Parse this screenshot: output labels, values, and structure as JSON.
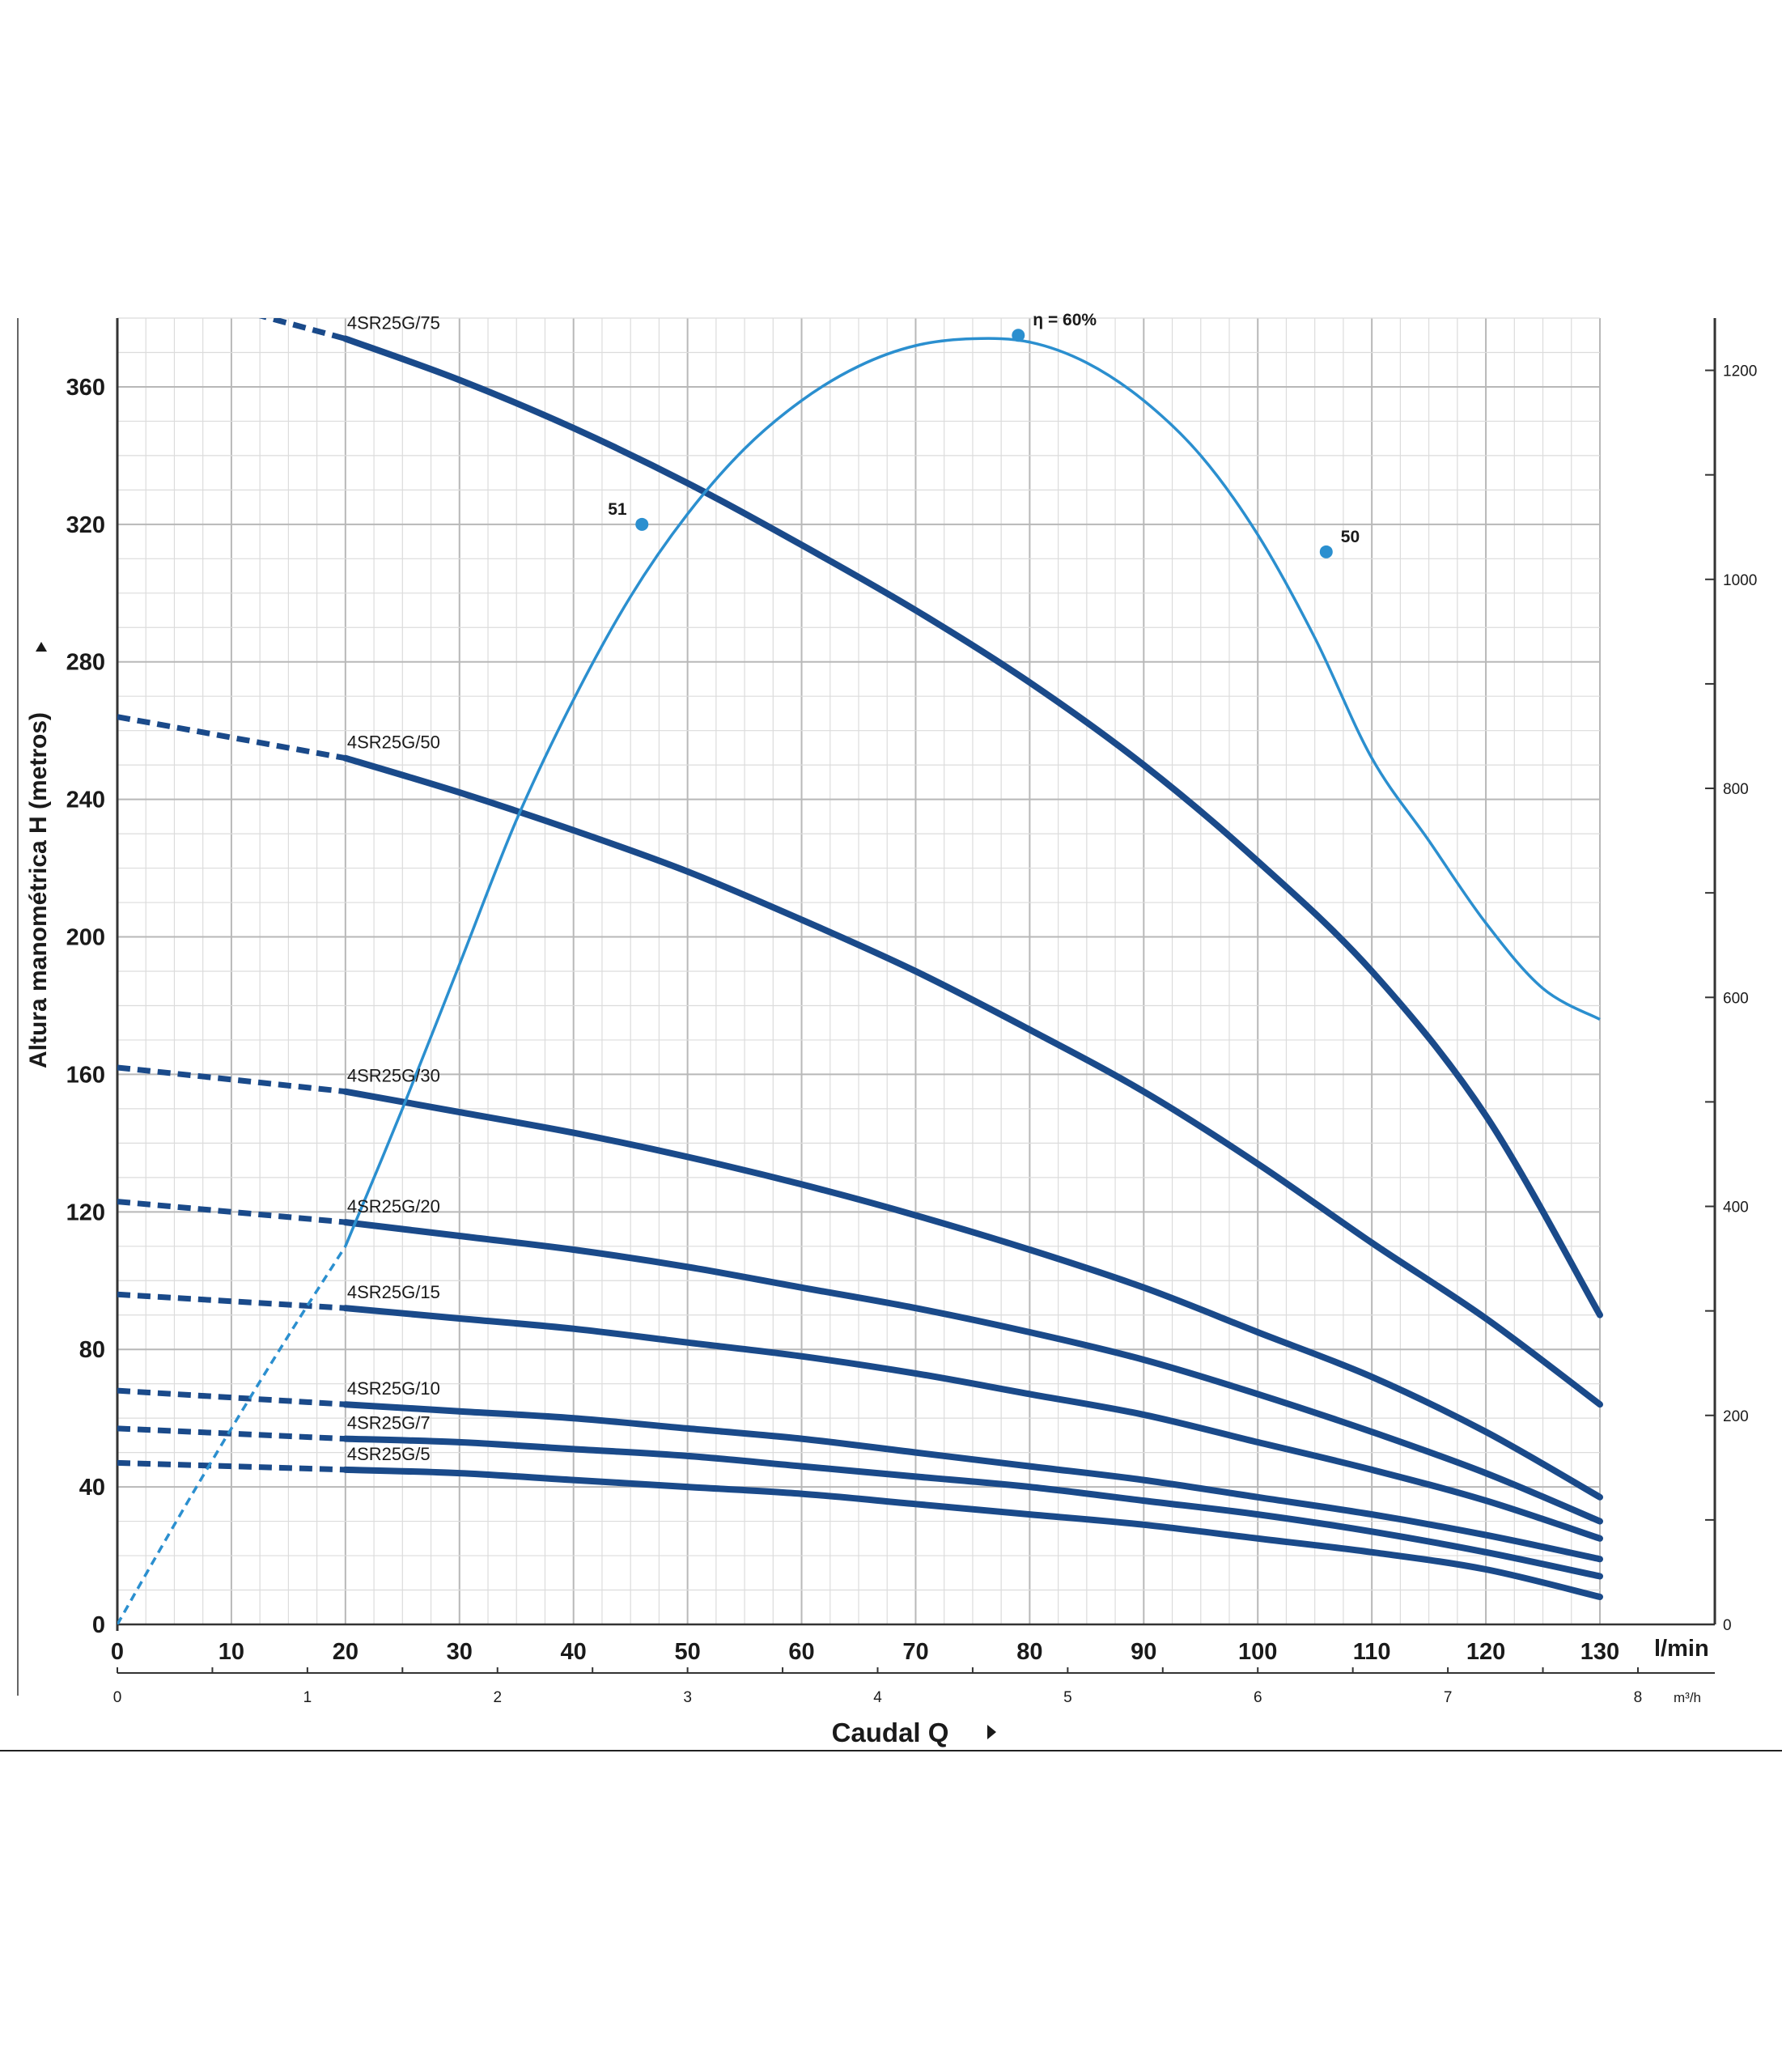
{
  "chart_data": {
    "type": "line",
    "xlabel": "Caudal Q",
    "ylabel": "Altura manométrica H (metros)",
    "x_unit": "l/min",
    "x_secondary_unit": "m³/h",
    "xlim": [
      0,
      130
    ],
    "ylim": [
      0,
      380
    ],
    "y_right_lim": [
      0,
      1250
    ],
    "x_ticks": [
      0,
      10,
      20,
      30,
      40,
      50,
      60,
      70,
      80,
      90,
      100,
      110,
      120,
      130
    ],
    "y_ticks": [
      0,
      40,
      80,
      120,
      160,
      200,
      240,
      280,
      320,
      360
    ],
    "x_secondary_ticks": [
      0,
      1,
      2,
      3,
      4,
      5,
      6,
      7,
      8
    ],
    "y_right_ticks": [
      0,
      200,
      400,
      600,
      800,
      1000,
      1200
    ],
    "grid": true,
    "curve_x": [
      20,
      30,
      40,
      50,
      60,
      70,
      80,
      90,
      100,
      110,
      120,
      130
    ],
    "series": [
      {
        "name": "4SR25G/75",
        "color": "#1a4a8a",
        "shutoff_head": 392,
        "values": [
          374,
          362,
          348,
          332,
          314,
          295,
          274,
          250,
          222,
          190,
          148,
          90
        ]
      },
      {
        "name": "4SR25G/50",
        "color": "#1a4a8a",
        "shutoff_head": 264,
        "values": [
          252,
          242,
          231,
          219,
          205,
          190,
          173,
          155,
          134,
          111,
          89,
          64
        ]
      },
      {
        "name": "4SR25G/30",
        "color": "#1a4a8a",
        "shutoff_head": 162,
        "values": [
          155,
          149,
          143,
          136,
          128,
          119,
          109,
          98,
          85,
          72,
          56,
          37
        ]
      },
      {
        "name": "4SR25G/20",
        "color": "#1a4a8a",
        "shutoff_head": 123,
        "values": [
          117,
          113,
          109,
          104,
          98,
          92,
          85,
          77,
          67,
          56,
          44,
          30
        ]
      },
      {
        "name": "4SR25G/15",
        "color": "#1a4a8a",
        "shutoff_head": 96,
        "values": [
          92,
          89,
          86,
          82,
          78,
          73,
          67,
          61,
          53,
          45,
          36,
          25
        ]
      },
      {
        "name": "4SR25G/10",
        "color": "#1a4a8a",
        "shutoff_head": 68,
        "values": [
          64,
          62,
          60,
          57,
          54,
          50,
          46,
          42,
          37,
          32,
          26,
          19
        ]
      },
      {
        "name": "4SR25G/7",
        "color": "#1a4a8a",
        "shutoff_head": 57,
        "values": [
          54,
          53,
          51,
          49,
          46,
          43,
          40,
          36,
          32,
          27,
          21,
          14
        ]
      },
      {
        "name": "4SR25G/5",
        "color": "#1a4a8a",
        "shutoff_head": 47,
        "values": [
          45,
          44,
          42,
          40,
          38,
          35,
          32,
          29,
          25,
          21,
          16,
          8
        ]
      }
    ],
    "efficiency_curve": {
      "color": "#2b8fcf",
      "x": [
        0,
        5,
        10,
        15,
        20,
        25,
        30,
        35,
        40,
        45,
        50,
        55,
        60,
        65,
        70,
        75,
        80,
        85,
        90,
        95,
        100,
        105,
        110,
        115,
        120,
        125,
        130
      ],
      "y": [
        0,
        29,
        57,
        84,
        110,
        150,
        192,
        234,
        269,
        299,
        323,
        342,
        356,
        366,
        372,
        374,
        373,
        367,
        356,
        340,
        317,
        287,
        252,
        228,
        204,
        185,
        176
      ],
      "markers": [
        {
          "x": 46,
          "y": 320,
          "label": "51"
        },
        {
          "x": 79,
          "y": 375,
          "label": "η = 60%"
        },
        {
          "x": 106,
          "y": 312,
          "label": "50"
        }
      ]
    }
  }
}
